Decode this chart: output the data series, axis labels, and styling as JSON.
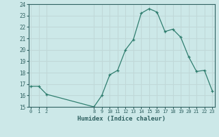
{
  "x": [
    0,
    1,
    2,
    8,
    9,
    10,
    11,
    12,
    13,
    14,
    15,
    16,
    17,
    18,
    19,
    20,
    21,
    22,
    23
  ],
  "y": [
    16.8,
    16.8,
    16.1,
    15.0,
    16.0,
    17.8,
    18.2,
    20.0,
    20.9,
    23.2,
    23.6,
    23.3,
    21.6,
    21.8,
    21.1,
    19.4,
    18.1,
    18.2,
    16.4
  ],
  "xlabel": "Humidex (Indice chaleur)",
  "line_color": "#2e7d6e",
  "bg_color": "#cce8e8",
  "grid_color": "#c0d8d8",
  "text_color": "#2e6060",
  "ylim": [
    15,
    24
  ],
  "yticks": [
    15,
    16,
    17,
    18,
    19,
    20,
    21,
    22,
    23,
    24
  ],
  "xticks": [
    0,
    1,
    2,
    8,
    9,
    10,
    11,
    12,
    13,
    14,
    15,
    16,
    17,
    18,
    19,
    20,
    21,
    22,
    23
  ],
  "xlim": [
    -0.3,
    23.3
  ]
}
